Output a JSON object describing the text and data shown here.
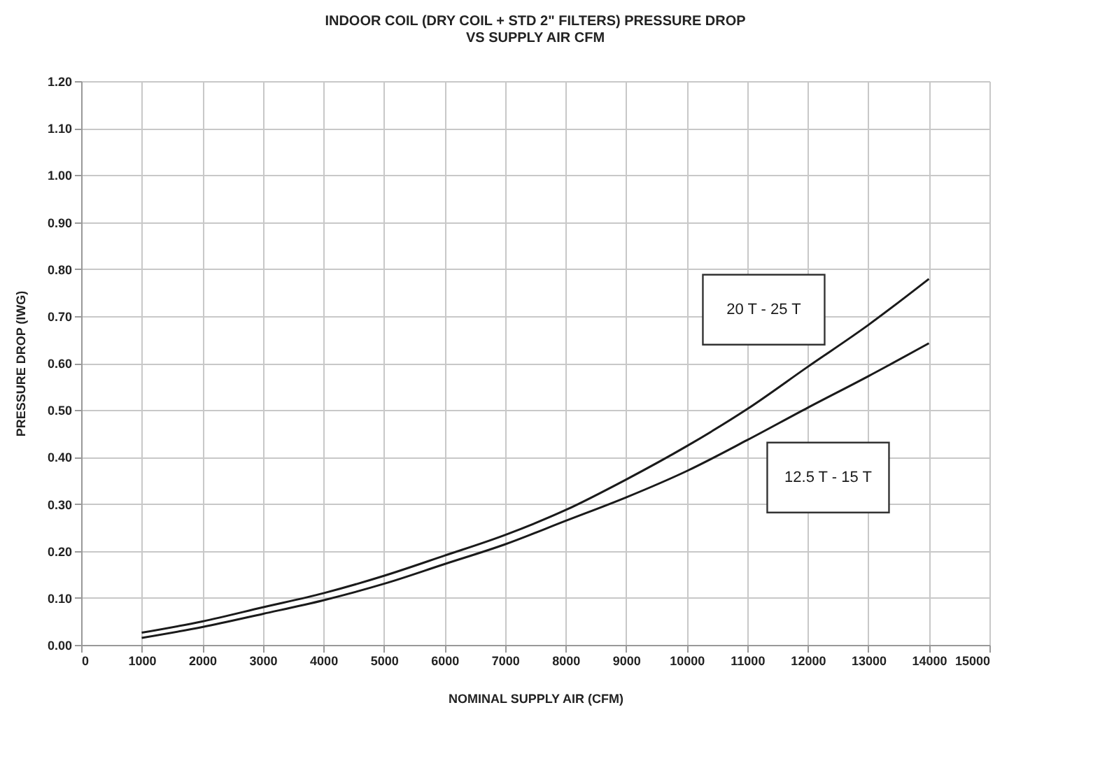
{
  "chart_data": {
    "type": "line",
    "title": "INDOOR COIL (DRY COIL + STD 2\" FILTERS) PRESSURE DROP\nVS SUPPLY AIR CFM",
    "xlabel": "NOMINAL SUPPLY AIR (CFM)",
    "ylabel": "PRESSURE DROP (IWG)",
    "x": [
      1000,
      2000,
      3000,
      4000,
      5000,
      6000,
      7000,
      8000,
      9000,
      10000,
      11000,
      12000,
      13000,
      14000
    ],
    "series": [
      {
        "name": "20 T - 25 T",
        "color": "#1a1a1a",
        "values": [
          0.026,
          0.05,
          0.08,
          0.11,
          0.147,
          0.19,
          0.234,
          0.287,
          0.352,
          0.423,
          0.502,
          0.592,
          0.681,
          0.779
        ]
      },
      {
        "name": "12.5 T - 15 T",
        "color": "#1a1a1a",
        "values": [
          0.015,
          0.038,
          0.066,
          0.095,
          0.13,
          0.172,
          0.214,
          0.264,
          0.314,
          0.37,
          0.436,
          0.505,
          0.572,
          0.642
        ]
      }
    ],
    "xlim": [
      0,
      15000
    ],
    "xticks": [
      0,
      1000,
      2000,
      3000,
      4000,
      5000,
      6000,
      7000,
      8000,
      9000,
      10000,
      11000,
      12000,
      13000,
      14000,
      15000
    ],
    "ylim": [
      0,
      1.2
    ],
    "yticks": [
      {
        "value": 0,
        "label": "0.00"
      },
      {
        "value": 0.1,
        "label": "0.10"
      },
      {
        "value": 0.2,
        "label": "0.20"
      },
      {
        "value": 0.3,
        "label": "0.30"
      },
      {
        "value": 0.4,
        "label": "0.40"
      },
      {
        "value": 0.5,
        "label": "0.50"
      },
      {
        "value": 0.6,
        "label": "0.60"
      },
      {
        "value": 0.7,
        "label": "0.70"
      },
      {
        "value": 0.8,
        "label": "0.80"
      },
      {
        "value": 0.9,
        "label": "0.90"
      },
      {
        "value": 1.0,
        "label": "1.00"
      },
      {
        "value": 1.1,
        "label": "1.10"
      },
      {
        "value": 1.2,
        "label": "1.20"
      }
    ],
    "grid": true,
    "marker": "none",
    "line_style": "solid"
  }
}
